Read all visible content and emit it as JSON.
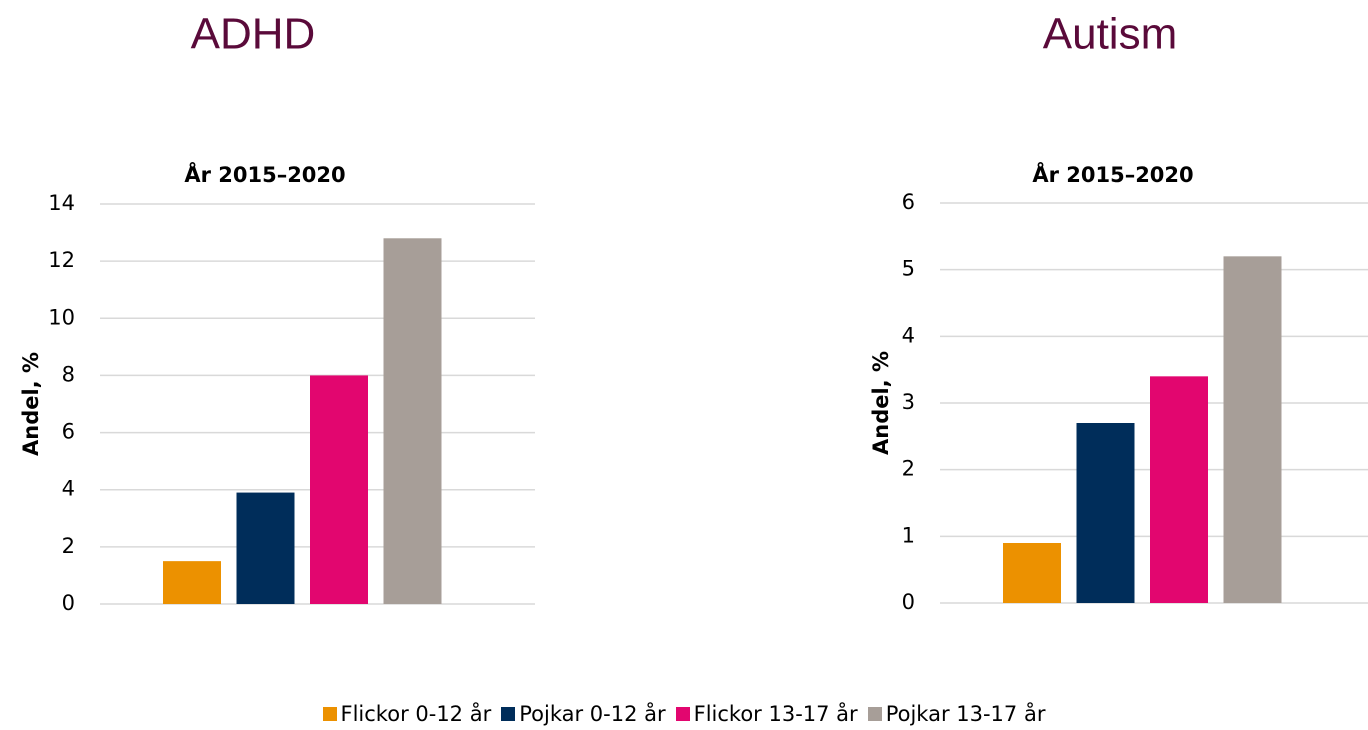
{
  "chart_data": [
    {
      "type": "bar",
      "heading": "ADHD",
      "title": "År 2015–2020",
      "ylabel": "Andel, %",
      "values": [
        1.5,
        3.9,
        8.0,
        12.8
      ],
      "ylim": [
        0,
        14
      ],
      "yticks": [
        0,
        2,
        4,
        6,
        8,
        10,
        12,
        14
      ],
      "grid": true
    },
    {
      "type": "bar",
      "heading": "Autism",
      "title": "År 2015–2020",
      "ylabel": "Andel, %",
      "values": [
        0.9,
        2.7,
        3.4,
        5.2
      ],
      "ylim": [
        0,
        6
      ],
      "yticks": [
        0,
        1,
        2,
        3,
        4,
        5,
        6
      ],
      "grid": true
    }
  ],
  "legend": {
    "items": [
      {
        "name": "Flickor 0-12 år",
        "color": "#ec9100"
      },
      {
        "name": "Pojkar 0-12 år",
        "color": "#002d5a"
      },
      {
        "name": "Flickor 13-17 år",
        "color": "#e2066f"
      },
      {
        "name": "Pojkar 13-17 år",
        "color": "#a79e98"
      }
    ]
  }
}
